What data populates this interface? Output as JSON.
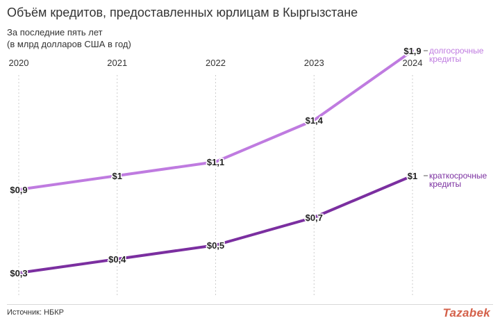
{
  "header": {
    "title": "Объём кредитов, предоставленных юрлицам в Кыргызстане",
    "subtitle_line1": "За последние пять лет",
    "subtitle_line2": "(в млрд долларов США в год)"
  },
  "footer": {
    "source": "Источник: НБКР",
    "logo": "Tazabek"
  },
  "colors": {
    "long_term": "#bf7be0",
    "short_term": "#7b2fa0",
    "grid": "#cccccc",
    "logo": "#d4614a"
  },
  "chart_data": {
    "type": "line",
    "title": "Объём кредитов, предоставленных юрлицам в Кыргызстане",
    "subtitle": "За последние пять лет (в млрд долларов США в год)",
    "x": [
      "2020",
      "2021",
      "2022",
      "2023",
      "2024"
    ],
    "ylim": [
      0,
      2.1
    ],
    "grid": "vertical dotted",
    "series": [
      {
        "name": "долгосрочные кредиты",
        "label_lines": [
          "долгосрочные",
          "кредиты"
        ],
        "values": [
          0.9,
          1.0,
          1.1,
          1.4,
          1.9
        ],
        "labels": [
          "$0,9",
          "$1",
          "$1,1",
          "$1,4",
          "$1,9"
        ]
      },
      {
        "name": "краткосрочные кредиты",
        "label_lines": [
          "краткосрочные",
          "кредиты"
        ],
        "values": [
          0.3,
          0.4,
          0.5,
          0.7,
          1.0
        ],
        "labels": [
          "$0,3",
          "$0,4",
          "$0,5",
          "$0,7",
          "$1"
        ]
      }
    ]
  }
}
